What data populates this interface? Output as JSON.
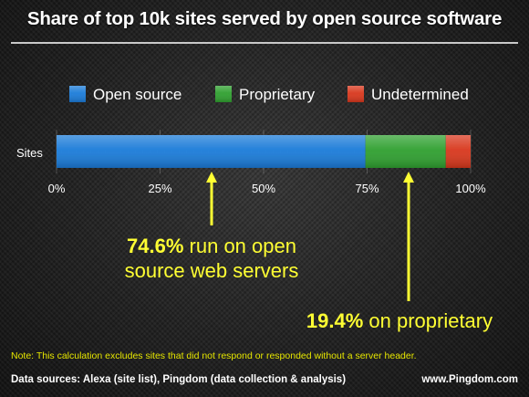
{
  "title": "Share of top 10k sites served by open source software",
  "note": "Note: This calculation excludes sites that did not respond or responded without a server header.",
  "footer": {
    "sources": "Data sources: Alexa (site list), Pingdom (data collection & analysis)",
    "website": "www.Pingdom.com"
  },
  "annotations": [
    {
      "highlight": "74.6%",
      "line1_rest": " run on open",
      "line2": "source web servers"
    },
    {
      "highlight": "19.4%",
      "line1_rest": " on proprietary"
    }
  ],
  "colors": {
    "open_source": "#1a7bd8",
    "proprietary": "#2fa02f",
    "undetermined": "#d8371c",
    "highlight_text": "#ffff33"
  },
  "chart_data": {
    "type": "bar",
    "orientation": "horizontal",
    "stacked": true,
    "categories": [
      "Sites"
    ],
    "series": [
      {
        "name": "Open source",
        "values": [
          74.6
        ],
        "color": "#1a7bd8"
      },
      {
        "name": "Proprietary",
        "values": [
          19.4
        ],
        "color": "#2fa02f"
      },
      {
        "name": "Undetermined",
        "values": [
          6.0
        ],
        "color": "#d8371c"
      }
    ],
    "x_ticks": [
      "0%",
      "25%",
      "50%",
      "75%",
      "100%"
    ],
    "xlim": [
      0,
      100
    ],
    "legend_position": "top",
    "grid": true
  }
}
